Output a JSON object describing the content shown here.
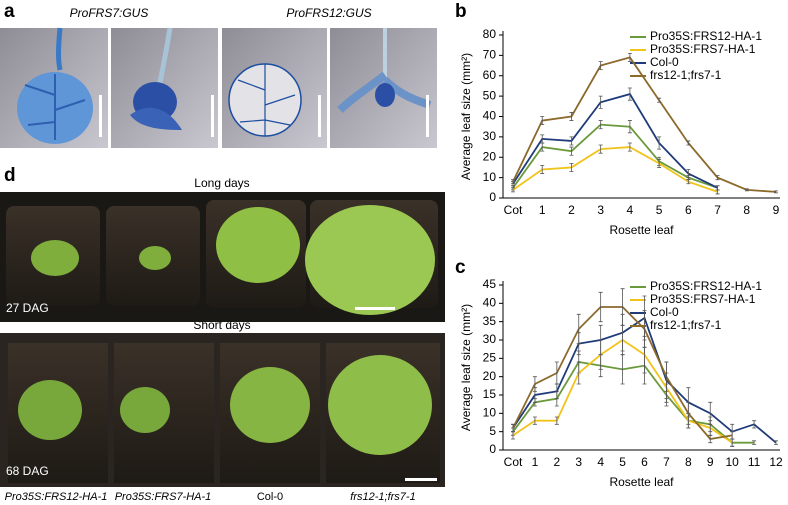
{
  "panels": {
    "a": "a",
    "b": "b",
    "c": "c",
    "d": "d"
  },
  "gus": [
    "ProFRS7:GUS",
    "ProFRS12:GUS"
  ],
  "photos": {
    "long_days": "Long days",
    "short_days": "Short days",
    "long_age": "27 DAG",
    "short_age": "68 DAG",
    "genotypes": [
      "Pro35S:FRS12-HA-1",
      "Pro35S:FRS7-HA-1",
      "Col-0",
      "frs12-1;frs7-1"
    ]
  },
  "chart_data": [
    {
      "type": "line",
      "xlabel": "Rosette leaf",
      "ylabel": "Average leaf size (mm²)",
      "categories": [
        "Cot",
        "1",
        "2",
        "3",
        "4",
        "5",
        "6",
        "7",
        "8",
        "9"
      ],
      "ylim": [
        0,
        80
      ],
      "yticks": [
        0,
        10,
        20,
        30,
        40,
        50,
        60,
        70,
        80
      ],
      "series": [
        {
          "name": "Pro35S:FRS12-HA-1",
          "color": "#6b9a3b",
          "values": [
            5,
            25,
            23,
            36,
            35,
            18,
            10,
            5,
            null,
            null
          ],
          "errors": [
            1,
            2,
            2,
            2,
            3,
            2,
            1,
            1,
            null,
            null
          ]
        },
        {
          "name": "Pro35S:FRS7-HA-1",
          "color": "#f2c318",
          "values": [
            4,
            14,
            15,
            24,
            25,
            17,
            8,
            3,
            null,
            null
          ],
          "errors": [
            1,
            2,
            2,
            2,
            2,
            2,
            1,
            1,
            null,
            null
          ]
        },
        {
          "name": "Col-0",
          "color": "#1f3b7a",
          "values": [
            7,
            29,
            28,
            47,
            51,
            27,
            12,
            5,
            null,
            null
          ],
          "errors": [
            1,
            2,
            2,
            3,
            3,
            3,
            2,
            1,
            null,
            null
          ]
        },
        {
          "name": "frs12-1;frs7-1",
          "color": "#8b6a2b",
          "values": [
            8,
            38,
            40,
            65,
            69,
            48,
            27,
            10,
            4,
            3
          ],
          "errors": [
            1,
            2,
            2,
            2,
            2,
            1,
            1,
            1,
            0.5,
            0.5
          ]
        }
      ]
    },
    {
      "type": "line",
      "xlabel": "Rosette leaf",
      "ylabel": "Average leaf size (mm²)",
      "categories": [
        "Cot",
        "1",
        "2",
        "3",
        "4",
        "5",
        "6",
        "7",
        "8",
        "9",
        "10",
        "11",
        "12"
      ],
      "ylim": [
        0,
        45
      ],
      "yticks": [
        0,
        5,
        10,
        15,
        20,
        25,
        30,
        35,
        40,
        45
      ],
      "series": [
        {
          "name": "Pro35S:FRS12-HA-1",
          "color": "#6b9a3b",
          "values": [
            5,
            13,
            14,
            24,
            23,
            22,
            23,
            15,
            8,
            7,
            2,
            2,
            null
          ],
          "errors": [
            1,
            1,
            2,
            3,
            3,
            4,
            5,
            3,
            2,
            2,
            1,
            0.5,
            null
          ]
        },
        {
          "name": "Pro35S:FRS7-HA-1",
          "color": "#f2c318",
          "values": [
            4,
            8,
            8,
            21,
            26,
            30,
            26,
            17,
            8,
            6,
            2,
            null,
            null
          ],
          "errors": [
            1,
            1,
            1,
            3,
            4,
            4,
            5,
            4,
            2,
            2,
            1,
            null,
            null
          ]
        },
        {
          "name": "Col-0",
          "color": "#1f3b7a",
          "values": [
            6,
            15,
            16,
            29,
            30,
            32,
            36,
            19,
            13,
            10,
            5,
            7,
            2
          ],
          "errors": [
            1,
            2,
            2,
            3,
            4,
            5,
            6,
            5,
            4,
            3,
            2,
            1,
            0.5
          ]
        },
        {
          "name": "frs12-1;frs7-1",
          "color": "#8b6a2b",
          "values": [
            6,
            18,
            21,
            33,
            39,
            39,
            33,
            20,
            10,
            3,
            4,
            null,
            null
          ],
          "errors": [
            1,
            2,
            3,
            4,
            4,
            5,
            5,
            4,
            3,
            1,
            1,
            null,
            null
          ]
        }
      ]
    }
  ]
}
